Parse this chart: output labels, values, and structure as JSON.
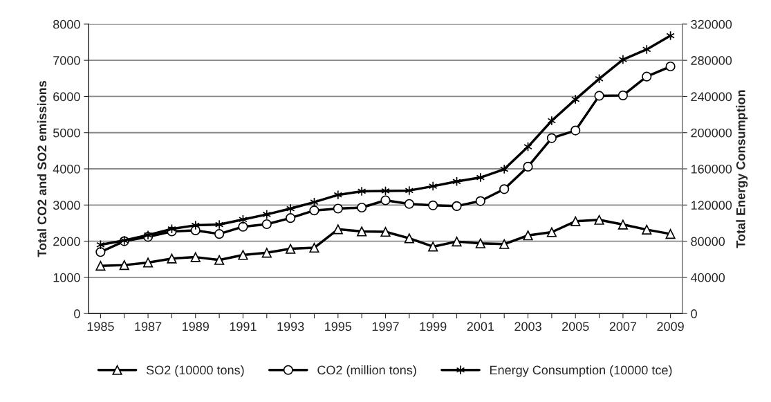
{
  "chart_data": {
    "type": "line",
    "ylabel": "Total CO2 and SO2 emissions",
    "y2label": "Total Energy Consumption",
    "categories": [
      "1985",
      null,
      "1987",
      null,
      "1989",
      null,
      "1991",
      null,
      "1993",
      null,
      "1995",
      null,
      "1997",
      null,
      "1999",
      null,
      "2001",
      null,
      "2003",
      null,
      "2005",
      null,
      "2007",
      null,
      "2009"
    ],
    "series": [
      {
        "name": "SO2 (10000 tons)",
        "color": "#000000",
        "marker": "triangle",
        "values": [
          1320,
          1340,
          1410,
          1520,
          1560,
          1480,
          1620,
          1680,
          1790,
          1820,
          2330,
          2270,
          2260,
          2080,
          1850,
          1990,
          1940,
          1920,
          2160,
          2250,
          2550,
          2590,
          2460,
          2320,
          2200
        ]
      },
      {
        "name": "CO2 (million tons)",
        "color": "#000000",
        "marker": "circle",
        "values": [
          1700,
          2000,
          2120,
          2270,
          2300,
          2200,
          2400,
          2470,
          2640,
          2850,
          2900,
          2930,
          3130,
          3030,
          2990,
          2970,
          3110,
          3440,
          4060,
          4850,
          5060,
          6020,
          6030,
          6550,
          6830
        ]
      },
      {
        "name": "Energy Consumption (10000 tce)",
        "color": "#000000",
        "marker": "cross",
        "axis": "y2",
        "values": [
          76000,
          80800,
          86800,
          93600,
          97600,
          98400,
          104000,
          109600,
          116000,
          123200,
          131200,
          135200,
          135600,
          136000,
          140800,
          146000,
          150400,
          159600,
          184400,
          213200,
          236800,
          259600,
          280800,
          292000,
          307200
        ]
      }
    ],
    "ylim": [
      0,
      8000
    ],
    "yticks": [
      0,
      1000,
      2000,
      3000,
      4000,
      5000,
      6000,
      7000,
      8000
    ],
    "y2lim": [
      0,
      320000
    ],
    "y2ticks": [
      0,
      40000,
      80000,
      120000,
      160000,
      200000,
      240000,
      280000,
      320000
    ],
    "grid": "y",
    "legend": "bottom"
  }
}
